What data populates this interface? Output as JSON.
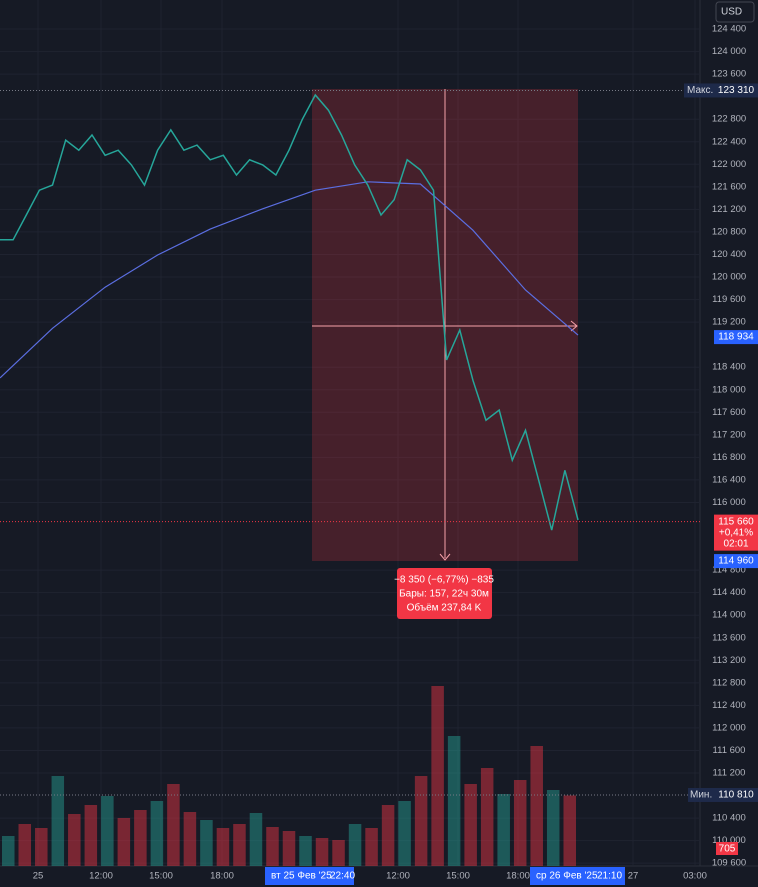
{
  "toolbar": {
    "currency": "USD"
  },
  "price_axis": {
    "ylim": [
      109550,
      124915
    ],
    "yticks": [
      {
        "value": 124400,
        "label": "124 400"
      },
      {
        "value": 124000,
        "label": "124 000"
      },
      {
        "value": 123600,
        "label": "123 600"
      },
      {
        "value": 122800,
        "label": "122 800"
      },
      {
        "value": 122400,
        "label": "122 400"
      },
      {
        "value": 122000,
        "label": "122 000"
      },
      {
        "value": 121600,
        "label": "121 600"
      },
      {
        "value": 121200,
        "label": "121 200"
      },
      {
        "value": 120800,
        "label": "120 800"
      },
      {
        "value": 120400,
        "label": "120 400"
      },
      {
        "value": 120000,
        "label": "120 000"
      },
      {
        "value": 119600,
        "label": "119 600"
      },
      {
        "value": 119200,
        "label": "119 200"
      },
      {
        "value": 118400,
        "label": "118 400"
      },
      {
        "value": 118000,
        "label": "118 000"
      },
      {
        "value": 117600,
        "label": "117 600"
      },
      {
        "value": 117200,
        "label": "117 200"
      },
      {
        "value": 116800,
        "label": "116 800"
      },
      {
        "value": 116400,
        "label": "116 400"
      },
      {
        "value": 116000,
        "label": "116 000"
      },
      {
        "value": 114800,
        "label": "114 800"
      },
      {
        "value": 114400,
        "label": "114 400"
      },
      {
        "value": 114000,
        "label": "114 000"
      },
      {
        "value": 113600,
        "label": "113 600"
      },
      {
        "value": 113200,
        "label": "113 200"
      },
      {
        "value": 112800,
        "label": "112 800"
      },
      {
        "value": 112400,
        "label": "112 400"
      },
      {
        "value": 112000,
        "label": "112 000"
      },
      {
        "value": 111600,
        "label": "111 600"
      },
      {
        "value": 111200,
        "label": "111 200"
      },
      {
        "value": 110400,
        "label": "110 400"
      },
      {
        "value": 110000,
        "label": "110 000"
      },
      {
        "value": 109600,
        "label": "109 600"
      }
    ]
  },
  "time_axis": {
    "labels": [
      "25",
      "12:00",
      "15:00",
      "18:00",
      "12:00",
      "15:00",
      "18:00",
      "27",
      "03:00"
    ],
    "highlight_start": "вт 25 Фев '25",
    "highlight_start_time": "22:40",
    "highlight_end": "ср 26 Фев '25",
    "highlight_end_time": "21:10"
  },
  "price": {
    "color": "#26a69a",
    "values": [
      120660,
      120660,
      121100,
      121540,
      121630,
      122430,
      122250,
      122520,
      122160,
      122250,
      121990,
      121630,
      122250,
      122610,
      122250,
      122340,
      122080,
      122160,
      121810,
      122080,
      121990,
      121810,
      122250,
      122790,
      123230,
      122960,
      122520,
      121990,
      121630,
      121100,
      121370,
      122080,
      121900,
      121540,
      118530,
      119060,
      118170,
      117460,
      117640,
      116750,
      117280,
      116400,
      115510,
      116570,
      115690
    ]
  },
  "ma": {
    "color": "#5b6ee1",
    "values": [
      118210,
      119090,
      119820,
      120390,
      120850,
      121210,
      121540,
      121690,
      121650,
      120830,
      119770,
      118970
    ]
  },
  "volume": {
    "values": [
      300,
      420,
      380,
      900,
      520,
      610,
      700,
      480,
      560,
      650,
      820,
      540,
      460,
      380,
      420,
      530,
      390,
      350,
      300,
      280,
      260,
      420,
      380,
      610,
      650,
      900,
      1800,
      1300,
      820,
      980,
      720,
      860,
      1200,
      760,
      705
    ],
    "last_label": "705"
  },
  "tags": {
    "max_label": "Макс.",
    "max": {
      "value": 123310,
      "label": "123 310"
    },
    "measure_end": {
      "value": 118934,
      "label": "118 934"
    },
    "last": {
      "value": 115660,
      "label": "115 660"
    },
    "last_change": "+0,41%",
    "last_timer": "02:01",
    "low": {
      "value": 114960,
      "label": "114 960"
    },
    "min_label": "Мин.",
    "min": {
      "value": 110810,
      "label": "110 810"
    }
  },
  "measure": {
    "line1": "−8 350 (−6,77%) −835",
    "line2": "Бары: 157, 22ч 30м",
    "line3": "Объём 237,84 K"
  }
}
